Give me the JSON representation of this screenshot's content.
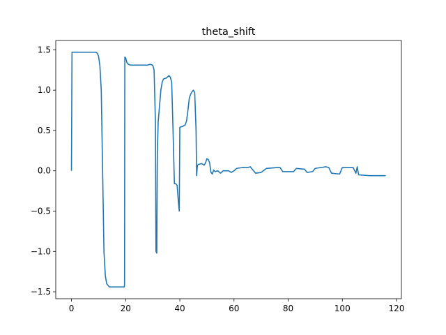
{
  "chart_data": {
    "type": "line",
    "title": "theta_shift",
    "color": "#1f77b4",
    "x": [
      0,
      0.2,
      5,
      9,
      9.5,
      10,
      10.5,
      11,
      11.5,
      12,
      12.5,
      13,
      14,
      17,
      19.5,
      19.6,
      19.7,
      20,
      20.5,
      21,
      22,
      28,
      29,
      30,
      30.5,
      31,
      31.2,
      31.5,
      31.7,
      32,
      32.5,
      33,
      33.5,
      34,
      35,
      36,
      36.5,
      37,
      37.5,
      38,
      38.5,
      39,
      39.5,
      39.8,
      40,
      41,
      42,
      42.5,
      43,
      43.5,
      44,
      44.5,
      45,
      45.5,
      46,
      46.2,
      46.5,
      47,
      48,
      49,
      49.5,
      50,
      50.5,
      51,
      51.5,
      52,
      52.5,
      53,
      54,
      55,
      56,
      57,
      58,
      59,
      60,
      61,
      63,
      65,
      66,
      67,
      68,
      70,
      72,
      76,
      77,
      78,
      82,
      83,
      86,
      87,
      89,
      90,
      92,
      94,
      95,
      96,
      99,
      100,
      104,
      105,
      105.5,
      106,
      110,
      116
    ],
    "values": [
      0,
      1.47,
      1.47,
      1.47,
      1.46,
      1.42,
      1.3,
      1.0,
      0,
      -1.0,
      -1.3,
      -1.4,
      -1.44,
      -1.44,
      -1.44,
      -1.4,
      1.41,
      1.4,
      1.34,
      1.32,
      1.31,
      1.31,
      1.32,
      1.31,
      1.25,
      0.6,
      -1.0,
      -1.02,
      0.2,
      0.6,
      0.8,
      1.0,
      1.1,
      1.14,
      1.15,
      1.18,
      1.16,
      1.1,
      0.5,
      -0.16,
      -0.16,
      -0.18,
      -0.4,
      -0.5,
      0.54,
      0.55,
      0.57,
      0.62,
      0.75,
      0.9,
      0.95,
      0.98,
      1.0,
      0.97,
      0.5,
      -0.06,
      0.07,
      0.08,
      0.09,
      0.07,
      0.1,
      0.15,
      0.14,
      0.1,
      -0.02,
      -0.04,
      0.01,
      -0.01,
      0,
      -0.03,
      0,
      0,
      0,
      -0.02,
      0,
      0.03,
      0.04,
      0.04,
      0.05,
      0.01,
      -0.03,
      -0.02,
      0.03,
      0.04,
      0.04,
      -0.01,
      -0.01,
      0.03,
      0.02,
      -0.02,
      -0.01,
      0.03,
      0.04,
      0.05,
      0.04,
      -0.03,
      -0.04,
      0.04,
      0.04,
      -0.03,
      0.05,
      -0.05,
      -0.06,
      -0.06
    ],
    "xlim": [
      -5.8,
      121.8
    ],
    "ylim": [
      -1.586,
      1.616
    ],
    "xticks": [
      0,
      20,
      40,
      60,
      80,
      100,
      120
    ],
    "yticks": [
      1.5,
      {
        "value": 1.0,
        "label": "1.0"
      },
      0.5,
      {
        "value": 0.0,
        "label": "0.0"
      },
      {
        "value": -0.5,
        "label": "−0.5"
      },
      {
        "value": -1.0,
        "label": "−1.0"
      },
      {
        "value": -1.5,
        "label": "−1.5"
      }
    ]
  }
}
